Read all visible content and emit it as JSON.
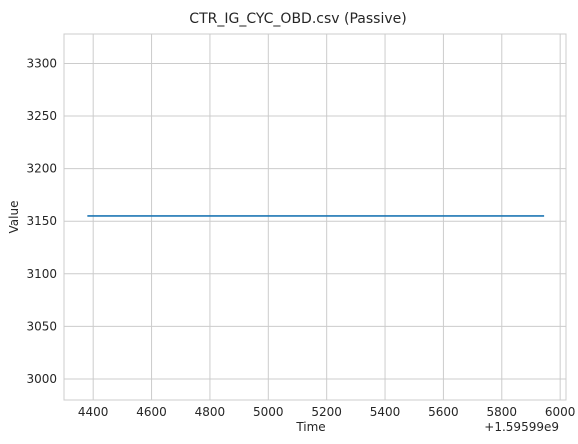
{
  "chart_data": {
    "type": "line",
    "title": "CTR_IG_CYC_OBD.csv (Passive)",
    "xlabel": "Time",
    "ylabel": "Value",
    "x_offset_label": "+1.59599e9",
    "xlim": [
      4300,
      6020
    ],
    "ylim": [
      2980,
      3328
    ],
    "xticks": [
      4400,
      4600,
      4800,
      5000,
      5200,
      5400,
      5600,
      5800,
      6000
    ],
    "yticks": [
      3000,
      3050,
      3100,
      3150,
      3200,
      3250,
      3300
    ],
    "grid": true,
    "series": [
      {
        "color": "#1f77b4",
        "x": [
          4380,
          5945
        ],
        "y": [
          3155,
          3155
        ]
      }
    ]
  }
}
